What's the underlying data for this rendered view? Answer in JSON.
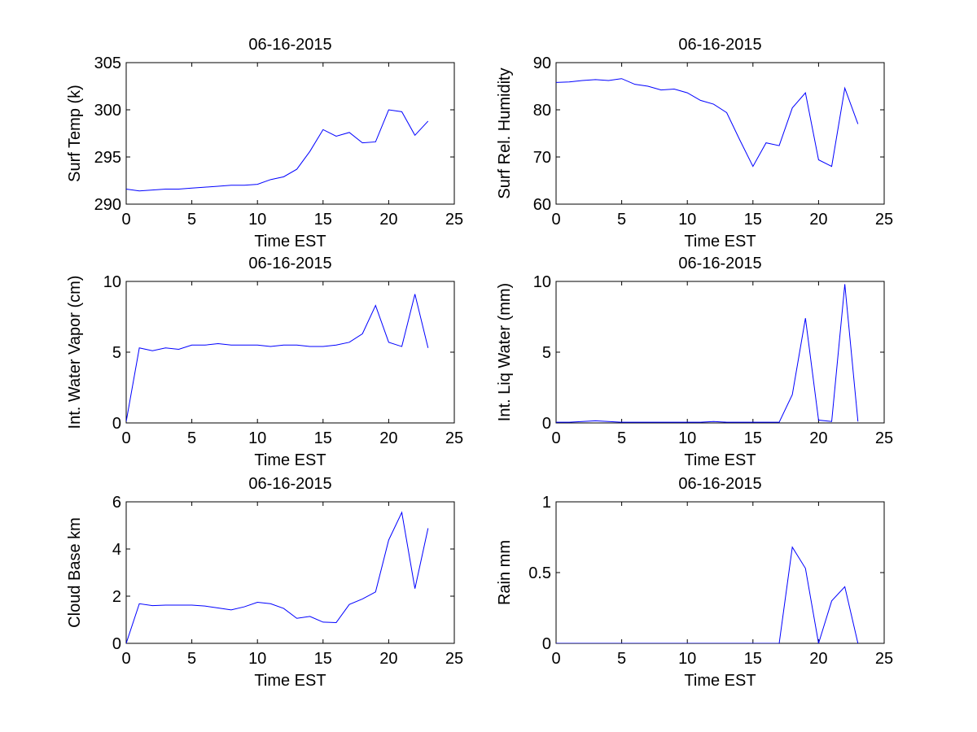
{
  "chart_data": [
    {
      "type": "line",
      "title": "06-16-2015",
      "xlabel": "Time EST",
      "ylabel": "Surf Temp (k)",
      "xlim": [
        0,
        25
      ],
      "ylim": [
        290,
        305
      ],
      "xticks": [
        0,
        5,
        10,
        15,
        20,
        25
      ],
      "yticks": [
        290,
        295,
        300,
        305
      ],
      "series": [
        {
          "name": "Surf Temp (k)",
          "color": "#0000ff",
          "x": [
            0,
            1,
            2,
            3,
            4,
            5,
            6,
            7,
            8,
            9,
            10,
            11,
            12,
            13,
            14,
            15,
            16,
            17,
            18,
            19,
            20,
            21,
            22,
            23
          ],
          "y": [
            291.6,
            291.4,
            291.5,
            291.6,
            291.6,
            291.7,
            291.8,
            291.9,
            292.0,
            292.0,
            292.1,
            292.6,
            292.9,
            293.7,
            295.6,
            297.9,
            297.2,
            297.6,
            296.5,
            296.6,
            300.0,
            299.8,
            297.3,
            298.8
          ]
        }
      ]
    },
    {
      "type": "line",
      "title": "06-16-2015",
      "xlabel": "Time EST",
      "ylabel": "Surf Rel. Humidity",
      "xlim": [
        0,
        25
      ],
      "ylim": [
        60,
        90
      ],
      "xticks": [
        0,
        5,
        10,
        15,
        20,
        25
      ],
      "yticks": [
        60,
        70,
        80,
        90
      ],
      "series": [
        {
          "name": "Surf Rel. Humidity",
          "color": "#0000ff",
          "x": [
            0,
            1,
            2,
            3,
            4,
            5,
            6,
            7,
            8,
            9,
            10,
            11,
            12,
            13,
            14,
            15,
            16,
            17,
            18,
            19,
            20,
            21,
            22,
            23
          ],
          "y": [
            85.8,
            85.9,
            86.2,
            86.4,
            86.2,
            86.6,
            85.4,
            85.0,
            84.2,
            84.4,
            83.6,
            82.0,
            81.2,
            79.4,
            73.6,
            68.0,
            73.0,
            72.4,
            80.4,
            83.6,
            69.4,
            68.0,
            84.6,
            77.0
          ]
        }
      ]
    },
    {
      "type": "line",
      "title": "06-16-2015",
      "xlabel": "Time EST",
      "ylabel": "Int. Water Vapor (cm)",
      "xlim": [
        0,
        25
      ],
      "ylim": [
        0,
        10
      ],
      "xticks": [
        0,
        5,
        10,
        15,
        20,
        25
      ],
      "yticks": [
        0,
        5,
        10
      ],
      "series": [
        {
          "name": "Int. Water Vapor (cm)",
          "color": "#0000ff",
          "x": [
            0,
            1,
            2,
            3,
            4,
            5,
            6,
            7,
            8,
            9,
            10,
            11,
            12,
            13,
            14,
            15,
            16,
            17,
            18,
            19,
            20,
            21,
            22,
            23
          ],
          "y": [
            0.1,
            5.3,
            5.1,
            5.3,
            5.2,
            5.5,
            5.5,
            5.6,
            5.5,
            5.5,
            5.5,
            5.4,
            5.5,
            5.5,
            5.4,
            5.4,
            5.5,
            5.7,
            6.3,
            8.3,
            5.7,
            5.4,
            9.1,
            5.3
          ]
        }
      ]
    },
    {
      "type": "line",
      "title": "06-16-2015",
      "xlabel": "Time EST",
      "ylabel": "Int. Liq Water (mm)",
      "xlim": [
        0,
        25
      ],
      "ylim": [
        0,
        10
      ],
      "xticks": [
        0,
        5,
        10,
        15,
        20,
        25
      ],
      "yticks": [
        0,
        5,
        10
      ],
      "series": [
        {
          "name": "Int. Liq Water (mm)",
          "color": "#0000ff",
          "x": [
            0,
            1,
            2,
            3,
            4,
            5,
            6,
            7,
            8,
            9,
            10,
            11,
            12,
            13,
            14,
            15,
            16,
            17,
            18,
            19,
            20,
            21,
            22,
            23
          ],
          "y": [
            0.05,
            0.05,
            0.1,
            0.15,
            0.1,
            0.05,
            0.05,
            0.05,
            0.05,
            0.05,
            0.05,
            0.05,
            0.1,
            0.05,
            0.05,
            0.05,
            0.05,
            0.05,
            2.0,
            7.4,
            0.2,
            0.1,
            9.8,
            0.1
          ]
        }
      ]
    },
    {
      "type": "line",
      "title": "06-16-2015",
      "xlabel": "Time EST",
      "ylabel": "Cloud Base km",
      "xlim": [
        0,
        25
      ],
      "ylim": [
        0,
        6
      ],
      "xticks": [
        0,
        5,
        10,
        15,
        20,
        25
      ],
      "yticks": [
        0,
        2,
        4,
        6
      ],
      "series": [
        {
          "name": "Cloud Base km",
          "color": "#0000ff",
          "x": [
            0,
            1,
            2,
            3,
            4,
            5,
            6,
            7,
            8,
            9,
            10,
            11,
            12,
            13,
            14,
            15,
            16,
            17,
            18,
            19,
            20,
            21,
            22,
            23
          ],
          "y": [
            0.0,
            1.68,
            1.6,
            1.62,
            1.62,
            1.62,
            1.58,
            1.5,
            1.42,
            1.55,
            1.74,
            1.68,
            1.48,
            1.06,
            1.14,
            0.9,
            0.88,
            1.65,
            1.88,
            2.18,
            4.38,
            5.55,
            2.32,
            4.88
          ]
        }
      ]
    },
    {
      "type": "line",
      "title": "06-16-2015",
      "xlabel": "Time EST",
      "ylabel": "Rain mm",
      "xlim": [
        0,
        25
      ],
      "ylim": [
        0,
        1
      ],
      "xticks": [
        0,
        5,
        10,
        15,
        20,
        25
      ],
      "yticks": [
        0,
        0.5,
        1
      ],
      "series": [
        {
          "name": "Rain mm",
          "color": "#0000ff",
          "x": [
            0,
            1,
            2,
            3,
            4,
            5,
            6,
            7,
            8,
            9,
            10,
            11,
            12,
            13,
            14,
            15,
            16,
            17,
            18,
            19,
            20,
            21,
            22,
            23
          ],
          "y": [
            0,
            0,
            0,
            0,
            0,
            0,
            0,
            0,
            0,
            0,
            0,
            0,
            0,
            0,
            0,
            0,
            0,
            0,
            0.68,
            0.53,
            0.0,
            0.3,
            0.4,
            0.0
          ]
        }
      ]
    }
  ]
}
